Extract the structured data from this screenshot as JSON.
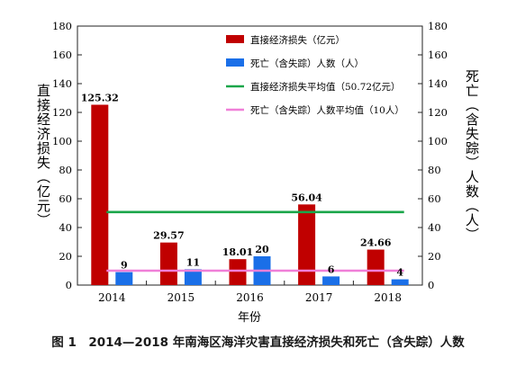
{
  "chart_data": {
    "type": "bar",
    "categories": [
      "2014",
      "2015",
      "2016",
      "2017",
      "2018"
    ],
    "series": [
      {
        "name": "直接经济损失（亿元）",
        "axis": "left",
        "color": "#c00000",
        "values": [
          125.32,
          29.57,
          18.01,
          56.04,
          24.66
        ],
        "labels": [
          "125.32",
          "29.57",
          "18.01",
          "56.04",
          "24.66"
        ]
      },
      {
        "name": "死亡（含失踪）人数（人）",
        "axis": "right",
        "color": "#1a6fe8",
        "values": [
          9,
          11,
          20,
          6,
          4
        ],
        "labels": [
          "9",
          "11",
          "20",
          "6",
          "4"
        ]
      }
    ],
    "reference_lines": [
      {
        "name": "直接经济损失平均值（50.72亿元）",
        "axis": "left",
        "value": 50.72,
        "color": "#1aa64a"
      },
      {
        "name": "死亡（含失踪）人数平均值（10人）",
        "axis": "right",
        "value": 10,
        "color": "#f07fd8"
      }
    ],
    "xlabel": "年份",
    "ylabel_left": "直接经济损失（亿元）",
    "ylabel_right": "死亡（含失踪）人数（人）",
    "ylim": [
      0,
      180
    ],
    "yticks": [
      0,
      20,
      40,
      60,
      80,
      100,
      120,
      140,
      160,
      180
    ],
    "legend_position": "top-right",
    "grid": false
  },
  "caption": "图 1　2014—2018 年南海区海洋灾害直接经济损失和死亡（含失踪）人数"
}
